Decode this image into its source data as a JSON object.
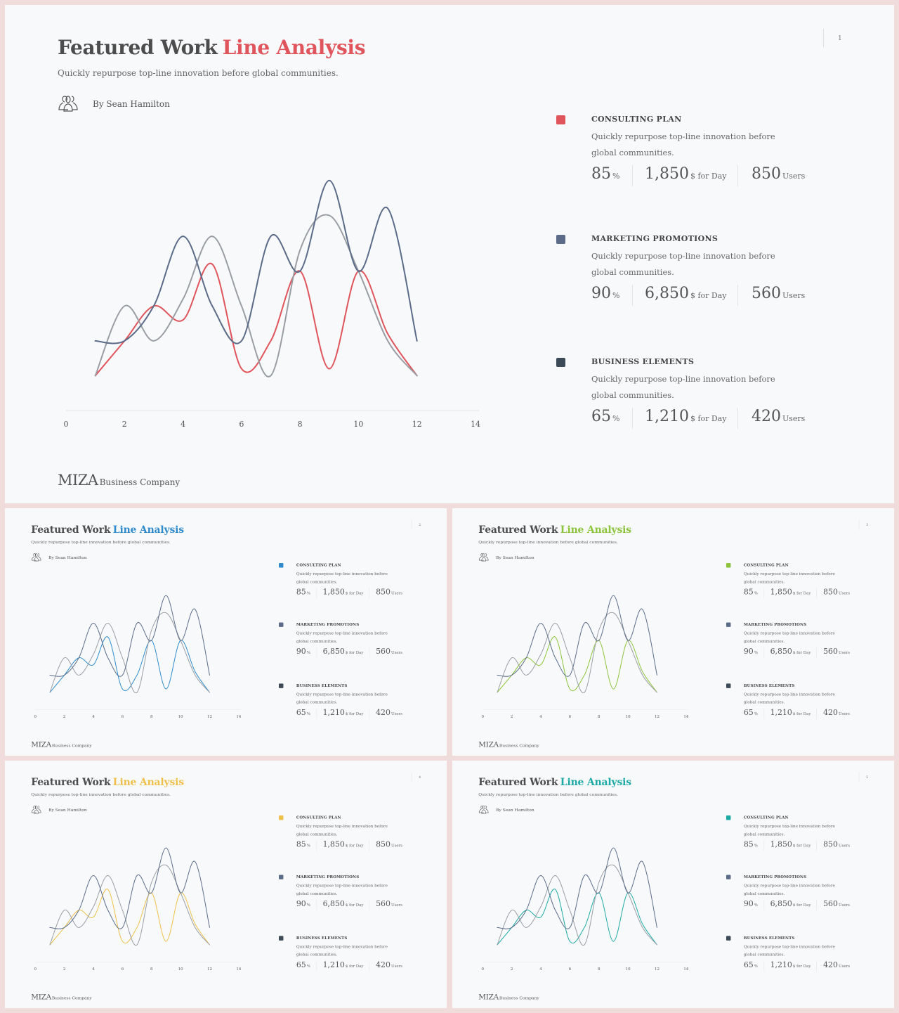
{
  "slides": [
    {
      "id": "slide-1",
      "accent": "#e0545b",
      "page_number": "1",
      "title_main": "Featured Work",
      "title_accent": "Line Analysis",
      "subtitle": "Quickly repurpose top-line innovation before global communities.",
      "author": "By Sean Hamilton",
      "brand_name": "MIZA",
      "brand_sub": "Business Company",
      "items": [
        {
          "name": "CONSULTING PLAN",
          "desc": "Quickly repurpose top-line innovation before global communities.",
          "color": "accent",
          "stat1": "85",
          "stat1_unit": "%",
          "stat2": "1,850",
          "stat2_unit": "$ for Day",
          "stat3": "850",
          "stat3_unit": "Users"
        },
        {
          "name": "MARKETING PROMOTIONS",
          "desc": "Quickly repurpose top-line innovation before global communities.",
          "color": "#5b6b88",
          "stat1": "90",
          "stat1_unit": "%",
          "stat2": "6,850",
          "stat2_unit": "$ for Day",
          "stat3": "560",
          "stat3_unit": "Users"
        },
        {
          "name": "BUSINESS ELEMENTS",
          "desc": "Quickly repurpose top-line innovation before global communities.",
          "color": "#3c4a58",
          "stat1": "65",
          "stat1_unit": "%",
          "stat2": "1,210",
          "stat2_unit": "$ for Day",
          "stat3": "420",
          "stat3_unit": "Users"
        }
      ]
    },
    {
      "id": "slide-2",
      "accent": "#2f8bcb",
      "page_number": "2",
      "title_main": "Featured Work",
      "title_accent": "Line Analysis",
      "subtitle": "Quickly repurpose top-line innovation before global communities.",
      "author": "By Sean Hamilton",
      "brand_name": "MIZA",
      "brand_sub": "Business Company",
      "items": [
        {
          "name": "CONSULTING PLAN",
          "desc": "Quickly repurpose top-line innovation before global communities.",
          "color": "accent",
          "stat1": "85",
          "stat1_unit": "%",
          "stat2": "1,850",
          "stat2_unit": "$ for Day",
          "stat3": "850",
          "stat3_unit": "Users"
        },
        {
          "name": "MARKETING PROMOTIONS",
          "desc": "Quickly repurpose top-line innovation before global communities.",
          "color": "#5b6b88",
          "stat1": "90",
          "stat1_unit": "%",
          "stat2": "6,850",
          "stat2_unit": "$ for Day",
          "stat3": "560",
          "stat3_unit": "Users"
        },
        {
          "name": "BUSINESS ELEMENTS",
          "desc": "Quickly repurpose top-line innovation before global communities.",
          "color": "#3c4a58",
          "stat1": "65",
          "stat1_unit": "%",
          "stat2": "1,210",
          "stat2_unit": "$ for Day",
          "stat3": "420",
          "stat3_unit": "Users"
        }
      ]
    },
    {
      "id": "slide-3",
      "accent": "#8cc43b",
      "page_number": "3",
      "title_main": "Featured Work",
      "title_accent": "Line Analysis",
      "subtitle": "Quickly repurpose top-line innovation before global communities.",
      "author": "By Sean Hamilton",
      "brand_name": "MIZA",
      "brand_sub": "Business Company",
      "items": [
        {
          "name": "CONSULTING PLAN",
          "desc": "Quickly repurpose top-line innovation before global communities.",
          "color": "accent",
          "stat1": "85",
          "stat1_unit": "%",
          "stat2": "1,850",
          "stat2_unit": "$ for Day",
          "stat3": "850",
          "stat3_unit": "Users"
        },
        {
          "name": "MARKETING PROMOTIONS",
          "desc": "Quickly repurpose top-line innovation before global communities.",
          "color": "#5b6b88",
          "stat1": "90",
          "stat1_unit": "%",
          "stat2": "6,850",
          "stat2_unit": "$ for Day",
          "stat3": "560",
          "stat3_unit": "Users"
        },
        {
          "name": "BUSINESS ELEMENTS",
          "desc": "Quickly repurpose top-line innovation before global communities.",
          "color": "#3c4a58",
          "stat1": "65",
          "stat1_unit": "%",
          "stat2": "1,210",
          "stat2_unit": "$ for Day",
          "stat3": "420",
          "stat3_unit": "Users"
        }
      ]
    },
    {
      "id": "slide-4",
      "accent": "#eec04a",
      "page_number": "4",
      "title_main": "Featured Work",
      "title_accent": "Line Analysis",
      "subtitle": "Quickly repurpose top-line innovation before global communities.",
      "author": "By Sean Hamilton",
      "brand_name": "MIZA",
      "brand_sub": "Business Company",
      "items": [
        {
          "name": "CONSULTING PLAN",
          "desc": "Quickly repurpose top-line innovation before global communities.",
          "color": "accent",
          "stat1": "85",
          "stat1_unit": "%",
          "stat2": "1,850",
          "stat2_unit": "$ for Day",
          "stat3": "850",
          "stat3_unit": "Users"
        },
        {
          "name": "MARKETING PROMOTIONS",
          "desc": "Quickly repurpose top-line innovation before global communities.",
          "color": "#5b6b88",
          "stat1": "90",
          "stat1_unit": "%",
          "stat2": "6,850",
          "stat2_unit": "$ for Day",
          "stat3": "560",
          "stat3_unit": "Users"
        },
        {
          "name": "BUSINESS ELEMENTS",
          "desc": "Quickly repurpose top-line innovation before global communities.",
          "color": "#3c4a58",
          "stat1": "65",
          "stat1_unit": "%",
          "stat2": "1,210",
          "stat2_unit": "$ for Day",
          "stat3": "420",
          "stat3_unit": "Users"
        }
      ]
    },
    {
      "id": "slide-5",
      "accent": "#1da9a5",
      "page_number": "5",
      "title_main": "Featured Work",
      "title_accent": "Line Analysis",
      "subtitle": "Quickly repurpose top-line innovation before global communities.",
      "author": "By Sean Hamilton",
      "brand_name": "MIZA",
      "brand_sub": "Business Company",
      "items": [
        {
          "name": "CONSULTING PLAN",
          "desc": "Quickly repurpose top-line innovation before global communities.",
          "color": "accent",
          "stat1": "85",
          "stat1_unit": "%",
          "stat2": "1,850",
          "stat2_unit": "$ for Day",
          "stat3": "850",
          "stat3_unit": "Users"
        },
        {
          "name": "MARKETING PROMOTIONS",
          "desc": "Quickly repurpose top-line innovation before global communities.",
          "color": "#5b6b88",
          "stat1": "90",
          "stat1_unit": "%",
          "stat2": "6,850",
          "stat2_unit": "$ for Day",
          "stat3": "560",
          "stat3_unit": "Users"
        },
        {
          "name": "BUSINESS ELEMENTS",
          "desc": "Quickly repurpose top-line innovation before global communities.",
          "color": "#3c4a58",
          "stat1": "65",
          "stat1_unit": "%",
          "stat2": "1,210",
          "stat2_unit": "$ for Day",
          "stat3": "420",
          "stat3_unit": "Users"
        }
      ]
    }
  ],
  "chart_data": {
    "type": "line",
    "title": "",
    "xlabel": "",
    "ylabel": "",
    "xlim": [
      0,
      14
    ],
    "ylim": [
      0,
      3.5
    ],
    "x_ticks": [
      0,
      2,
      4,
      6,
      8,
      10,
      12,
      14
    ],
    "grid": false,
    "series": [
      {
        "color": "accent",
        "x": [
          1,
          2,
          3,
          4,
          5,
          6,
          7,
          8,
          9,
          10,
          11,
          12
        ],
        "y": [
          0.5,
          1.0,
          1.5,
          1.3,
          2.1,
          0.6,
          1.0,
          2.0,
          0.6,
          2.0,
          1.1,
          0.5
        ]
      },
      {
        "color": "#9a9ea4",
        "x": [
          1,
          2,
          3,
          4,
          5,
          6,
          7,
          8,
          9,
          10,
          11,
          12
        ],
        "y": [
          0.5,
          1.5,
          1.0,
          1.6,
          2.5,
          1.5,
          0.5,
          2.3,
          2.8,
          2.0,
          1.0,
          0.5
        ]
      },
      {
        "color": "#5b6b88",
        "x": [
          1,
          2,
          3,
          4,
          5,
          6,
          7,
          8,
          9,
          10,
          11,
          12
        ],
        "y": [
          1.0,
          1.0,
          1.5,
          2.5,
          1.5,
          1.0,
          2.5,
          2.0,
          3.3,
          2.0,
          2.9,
          1.0
        ]
      }
    ]
  }
}
